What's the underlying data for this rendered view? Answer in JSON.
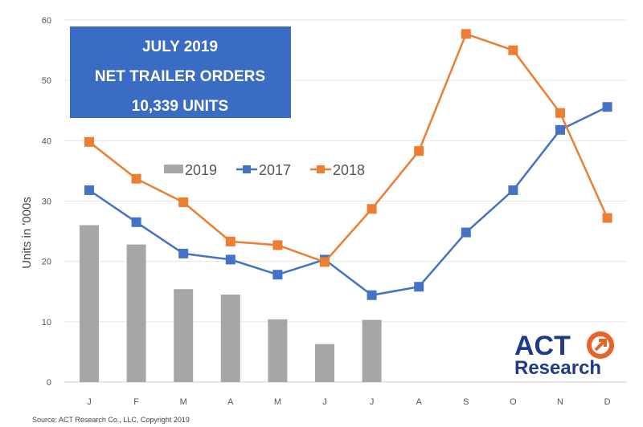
{
  "chart_data": {
    "type": "bar+line",
    "title_box": [
      "JULY 2019",
      "NET TRAILER ORDERS",
      "10,339 UNITS"
    ],
    "ylabel": "Units in '000s",
    "xlabel": "",
    "categories": [
      "J",
      "F",
      "M",
      "A",
      "M",
      "J",
      "J",
      "A",
      "S",
      "O",
      "N",
      "D"
    ],
    "yticks": [
      0,
      10,
      20,
      30,
      40,
      50,
      60
    ],
    "ylim": [
      0,
      60
    ],
    "grid": true,
    "legend_placement": "top-center",
    "series": [
      {
        "name": "2019",
        "type": "bar",
        "color": "#a6a6a6",
        "values": [
          26.0,
          22.8,
          15.4,
          14.5,
          10.4,
          6.3,
          10.3,
          null,
          null,
          null,
          null,
          null
        ]
      },
      {
        "name": "2017",
        "type": "line",
        "color": "#4472c4",
        "values": [
          31.8,
          26.5,
          21.3,
          20.3,
          17.8,
          20.3,
          14.4,
          15.8,
          24.8,
          31.8,
          41.8,
          45.6
        ]
      },
      {
        "name": "2018",
        "type": "line",
        "color": "#ed7d31",
        "values": [
          39.8,
          33.7,
          29.8,
          23.3,
          22.7,
          19.9,
          28.7,
          38.3,
          57.7,
          55.0,
          44.6,
          27.2
        ]
      }
    ]
  },
  "logo": {
    "line1": "ACT",
    "line2": "Research"
  },
  "source": "Source: ACT Research Co., LLC, Copyright 2019",
  "colors": {
    "title_box": "#3a6cc4",
    "logo_text": "#1f3a8a",
    "logo_accent": "#e8622a"
  }
}
